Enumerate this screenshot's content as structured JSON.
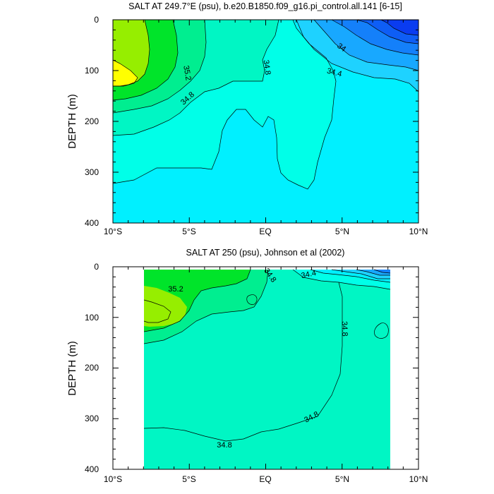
{
  "chart_data": [
    {
      "type": "contour",
      "title": "SALT AT 249.7°E (psu), b.e20.B1850.f09_g16.pi_control.all.141 [6-15]",
      "xlabel": "",
      "ylabel": "DEPTH (m)",
      "xlim": [
        -10,
        10
      ],
      "ylim": [
        400,
        0
      ],
      "x_tick_labels": [
        "10°S",
        "5°S",
        "EQ",
        "5°N",
        "10°N"
      ],
      "y_tick_labels": [
        "0",
        "100",
        "200",
        "300",
        "400"
      ],
      "contour_labels": [
        "35.2",
        "34.8",
        "34.8",
        "34",
        "34.4"
      ],
      "max_salinity_region": {
        "lat_range": [
          -10,
          -9
        ],
        "depth_range": [
          80,
          130
        ],
        "value_approx": 35.6
      },
      "min_salinity_region": {
        "lat_range": [
          8,
          10
        ],
        "depth_range": [
          0,
          40
        ],
        "value_approx": 33.4
      }
    },
    {
      "type": "contour",
      "title": "SALT AT 250 (psu), Johnson et al (2002)",
      "xlabel": "",
      "ylabel": "DEPTH (m)",
      "xlim": [
        -10,
        10
      ],
      "ylim": [
        400,
        0
      ],
      "data_lat_range": [
        -8,
        8
      ],
      "x_tick_labels": [
        "10°S",
        "5°S",
        "EQ",
        "5°N",
        "10°N"
      ],
      "y_tick_labels": [
        "0",
        "100",
        "200",
        "300",
        "400"
      ],
      "contour_labels": [
        "35.2",
        "34.8",
        "34.4",
        "34.8",
        "34.8",
        "34.8"
      ],
      "max_salinity_region": {
        "lat_range": [
          -8,
          -6.5
        ],
        "depth_range": [
          60,
          110
        ],
        "value_approx": 35.4
      },
      "min_salinity_region": {
        "lat_range": [
          7,
          8
        ],
        "depth_range": [
          0,
          20
        ],
        "value_approx": 33.8
      }
    }
  ],
  "colors": {
    "s33_4": "#0a3cf0",
    "s33_6": "#0e5ef5",
    "s33_8": "#1480fa",
    "s34_0": "#18a8ff",
    "s34_2": "#1ed2ff",
    "s34_4": "#00f0ff",
    "s34_6": "#00ffe8",
    "s34_8": "#00f6c4",
    "s35_0": "#00ee90",
    "s35_2": "#00e42a",
    "s35_4": "#96ee00",
    "s35_6": "#ffff00"
  }
}
